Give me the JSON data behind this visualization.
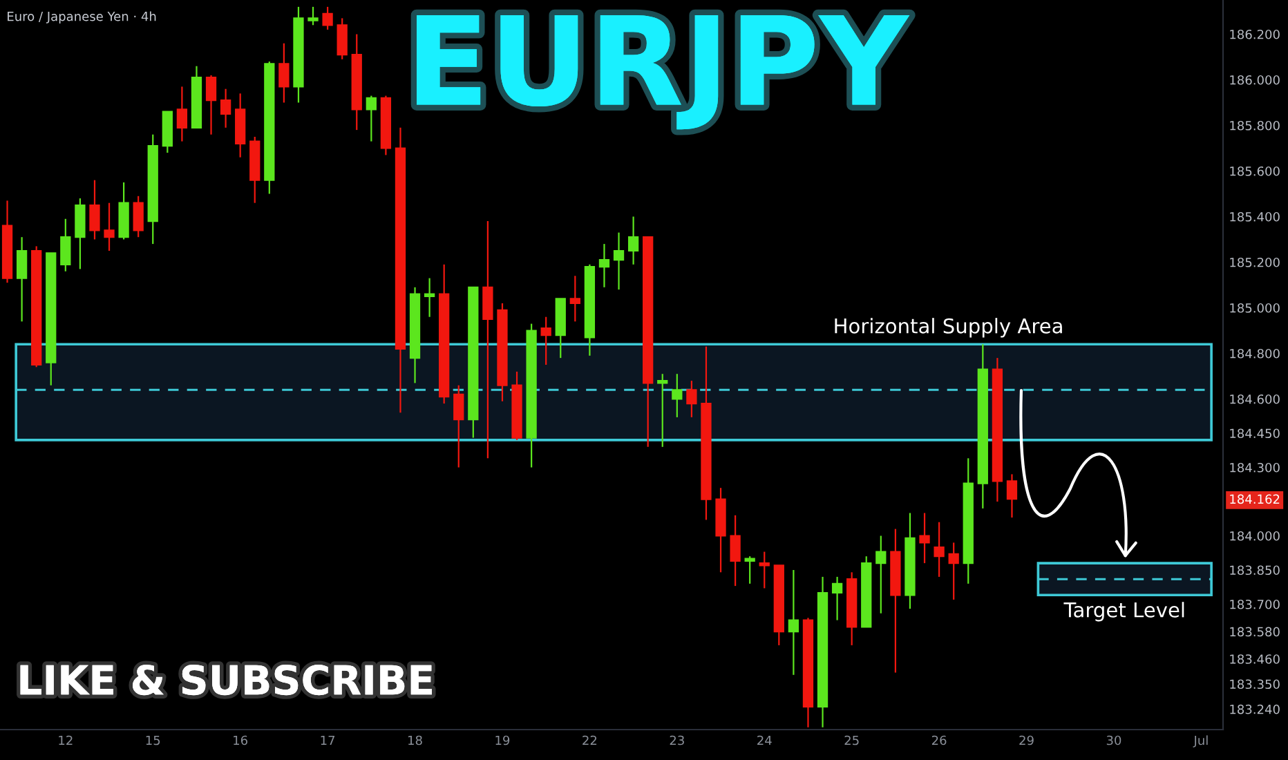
{
  "chart_data": {
    "type": "candlestick",
    "title": "EURJPY",
    "subtitle": "Euro / Japanese Yen · 4h",
    "annotations": [
      "LIKE & SUBSCRIBE"
    ],
    "categories": [
      null,
      null,
      null,
      null,
      "12",
      null,
      null,
      null,
      null,
      null,
      "15",
      null,
      null,
      null,
      null,
      null,
      "16",
      null,
      null,
      null,
      null,
      null,
      "17",
      null,
      null,
      null,
      null,
      null,
      "18",
      null,
      null,
      null,
      null,
      null,
      "19",
      null,
      null,
      null,
      null,
      null,
      "22",
      null,
      null,
      null,
      null,
      null,
      "23",
      null,
      null,
      null,
      null,
      null,
      "24",
      null,
      null,
      null,
      null,
      null,
      "25",
      null,
      null,
      null,
      null,
      null,
      "26",
      null,
      null,
      null,
      null,
      null,
      "29",
      null,
      null,
      null,
      null,
      null,
      "30",
      null,
      null,
      null,
      null,
      null,
      "Jul",
      null
    ],
    "ohlc": [
      [
        185.36,
        185.47,
        185.11,
        185.13
      ],
      [
        185.13,
        185.31,
        184.94,
        185.25
      ],
      [
        185.25,
        185.27,
        184.74,
        184.75
      ],
      [
        184.76,
        185.24,
        184.66,
        185.24
      ],
      [
        185.19,
        185.39,
        185.16,
        185.31
      ],
      [
        185.31,
        185.48,
        185.17,
        185.45
      ],
      [
        185.45,
        185.56,
        185.3,
        185.34
      ],
      [
        185.34,
        185.46,
        185.25,
        185.31
      ],
      [
        185.31,
        185.55,
        185.3,
        185.46
      ],
      [
        185.46,
        185.49,
        185.31,
        185.34
      ],
      [
        185.38,
        185.76,
        185.28,
        185.71
      ],
      [
        185.71,
        185.86,
        185.68,
        185.86
      ],
      [
        185.87,
        185.97,
        185.73,
        185.79
      ],
      [
        185.79,
        186.06,
        185.79,
        186.01
      ],
      [
        186.01,
        186.02,
        185.76,
        185.91
      ],
      [
        185.91,
        185.96,
        185.79,
        185.85
      ],
      [
        185.87,
        185.94,
        185.66,
        185.72
      ],
      [
        185.73,
        185.75,
        185.46,
        185.56
      ],
      [
        185.56,
        186.08,
        185.5,
        186.07
      ],
      [
        186.07,
        186.16,
        185.9,
        185.97
      ],
      [
        185.97,
        186.32,
        185.9,
        186.27
      ],
      [
        186.26,
        186.32,
        186.24,
        186.27
      ],
      [
        186.29,
        186.32,
        186.22,
        186.24
      ],
      [
        186.24,
        186.27,
        186.09,
        186.11
      ],
      [
        186.11,
        186.2,
        185.78,
        185.87
      ],
      [
        185.87,
        185.93,
        185.73,
        185.92
      ],
      [
        185.92,
        185.93,
        185.67,
        185.7
      ],
      [
        185.7,
        185.79,
        184.54,
        184.82
      ],
      [
        184.78,
        185.09,
        184.67,
        185.06
      ],
      [
        185.05,
        185.13,
        184.96,
        185.06
      ],
      [
        185.06,
        185.19,
        184.58,
        184.61
      ],
      [
        184.62,
        184.66,
        184.3,
        184.51
      ],
      [
        184.51,
        185.09,
        184.43,
        185.09
      ],
      [
        185.09,
        185.38,
        184.34,
        184.95
      ],
      [
        184.99,
        185.02,
        184.59,
        184.66
      ],
      [
        184.66,
        184.72,
        184.42,
        184.43
      ],
      [
        184.43,
        184.93,
        184.3,
        184.9
      ],
      [
        184.91,
        184.96,
        184.75,
        184.88
      ],
      [
        184.88,
        185.04,
        184.78,
        185.04
      ],
      [
        185.04,
        185.14,
        184.94,
        185.02
      ],
      [
        184.87,
        185.19,
        184.79,
        185.18
      ],
      [
        185.18,
        185.28,
        185.09,
        185.21
      ],
      [
        185.21,
        185.33,
        185.08,
        185.25
      ],
      [
        185.25,
        185.4,
        185.19,
        185.31
      ],
      [
        185.31,
        185.31,
        184.39,
        184.67
      ],
      [
        184.67,
        184.71,
        184.39,
        184.68
      ],
      [
        184.6,
        184.71,
        184.52,
        184.64
      ],
      [
        184.64,
        184.68,
        184.52,
        184.58
      ],
      [
        184.58,
        184.83,
        184.07,
        184.16
      ],
      [
        184.16,
        184.21,
        183.84,
        184.0
      ],
      [
        184.0,
        184.09,
        183.78,
        183.89
      ],
      [
        183.89,
        183.91,
        183.79,
        183.9
      ],
      [
        183.88,
        183.93,
        183.77,
        183.87
      ],
      [
        183.87,
        183.87,
        183.52,
        183.58
      ],
      [
        183.58,
        183.85,
        183.39,
        183.63
      ],
      [
        183.63,
        183.64,
        183.16,
        183.25
      ],
      [
        183.25,
        183.82,
        183.16,
        183.75
      ],
      [
        183.75,
        183.82,
        183.63,
        183.79
      ],
      [
        183.81,
        183.84,
        183.52,
        183.6
      ],
      [
        183.6,
        183.91,
        183.6,
        183.88
      ],
      [
        183.88,
        184.0,
        183.66,
        183.93
      ],
      [
        183.93,
        184.03,
        183.4,
        183.74
      ],
      [
        183.74,
        184.1,
        183.68,
        183.99
      ],
      [
        184.0,
        184.1,
        183.88,
        183.97
      ],
      [
        183.95,
        184.06,
        183.82,
        183.91
      ],
      [
        183.92,
        183.97,
        183.72,
        183.88
      ],
      [
        183.88,
        184.34,
        183.79,
        184.23
      ],
      [
        184.23,
        184.84,
        184.12,
        184.73
      ],
      [
        184.73,
        184.78,
        184.15,
        184.24
      ],
      [
        184.24,
        184.27,
        184.08,
        184.162
      ],
      null,
      null,
      null,
      null,
      null,
      null,
      null,
      null,
      null,
      null,
      null,
      null,
      null,
      null
    ],
    "colors": [
      "#f2170f",
      "#5ce61e",
      "#f2170f",
      "#5ce61e",
      "#5ce61e",
      "#5ce61e",
      "#f2170f",
      "#f2170f",
      "#5ce61e",
      "#f2170f",
      "#5ce61e",
      "#5ce61e",
      "#f2170f",
      "#5ce61e",
      "#f2170f",
      "#f2170f",
      "#f2170f",
      "#f2170f",
      "#5ce61e",
      "#f2170f",
      "#5ce61e",
      "#5ce61e",
      "#f2170f",
      "#f2170f",
      "#f2170f",
      "#5ce61e",
      "#f2170f",
      "#f2170f",
      "#5ce61e",
      "#5ce61e",
      "#f2170f",
      "#f2170f",
      "#5ce61e",
      "#f2170f",
      "#f2170f",
      "#f2170f",
      "#5ce61e",
      "#f2170f",
      "#5ce61e",
      "#f2170f",
      "#5ce61e",
      "#5ce61e",
      "#5ce61e",
      "#5ce61e",
      "#f2170f",
      "#5ce61e",
      "#5ce61e",
      "#f2170f",
      "#f2170f",
      "#f2170f",
      "#f2170f",
      "#5ce61e",
      "#f2170f",
      "#f2170f",
      "#5ce61e",
      "#f2170f",
      "#5ce61e",
      "#5ce61e",
      "#f2170f",
      "#5ce61e",
      "#5ce61e",
      "#f2170f",
      "#5ce61e",
      "#f2170f",
      "#f2170f",
      "#f2170f",
      "#5ce61e",
      "#5ce61e",
      "#f2170f",
      "#f2170f",
      null,
      null,
      null,
      null,
      null,
      null,
      null,
      null,
      null,
      null,
      null,
      null,
      null,
      null
    ],
    "ylim": [
      183.15,
      186.35
    ],
    "yticks": [
      {
        "value": 186.2,
        "label": "186.200"
      },
      {
        "value": 186.0,
        "label": "186.000"
      },
      {
        "value": 185.8,
        "label": "185.800"
      },
      {
        "value": 185.6,
        "label": "185.600"
      },
      {
        "value": 185.4,
        "label": "185.400"
      },
      {
        "value": 185.2,
        "label": "185.200"
      },
      {
        "value": 185.0,
        "label": "185.000"
      },
      {
        "value": 184.8,
        "label": "184.800"
      },
      {
        "value": 184.6,
        "label": "184.600"
      },
      {
        "value": 184.45,
        "label": "184.450"
      },
      {
        "value": 184.3,
        "label": "184.300"
      },
      {
        "value": 184.162,
        "label": "184.162"
      },
      {
        "value": 184.0,
        "label": "184.000"
      },
      {
        "value": 183.85,
        "label": "183.850"
      },
      {
        "value": 183.7,
        "label": "183.700"
      },
      {
        "value": 183.58,
        "label": "183.580"
      },
      {
        "value": 183.46,
        "label": "183.460"
      },
      {
        "value": 183.35,
        "label": "183.350"
      },
      {
        "value": 183.24,
        "label": "183.240"
      }
    ],
    "bands": [
      {
        "axis": "y",
        "from": 184.42,
        "to": 184.84,
        "label": "Horizontal Supply Area",
        "color": "#3ec9d6"
      },
      {
        "axis": "y",
        "from": 183.74,
        "to": 183.88,
        "label": "Target Level",
        "color": "#3ec9d6"
      }
    ],
    "ref_lines": [
      {
        "axis": "y",
        "value": 184.64,
        "color": "#3ec9d6",
        "line_style": "dashed"
      },
      {
        "axis": "y",
        "value": 183.81,
        "color": "#3ec9d6",
        "line_style": "dashed"
      }
    ],
    "grid": false
  }
}
